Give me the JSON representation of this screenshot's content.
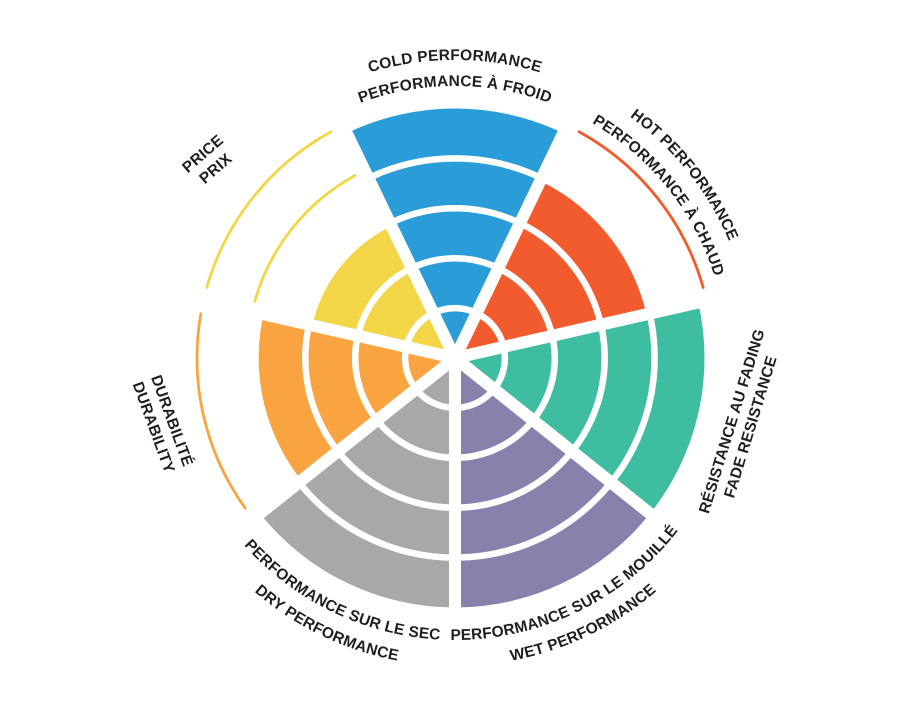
{
  "page": {
    "background": "#ffffff",
    "description": "Tire performance rating wheel"
  },
  "chart_data": {
    "type": "radar",
    "subtype": "polar-sector-wheel",
    "title": "",
    "value_scale": {
      "min": 0,
      "max": 5,
      "rings": 5
    },
    "grid": true,
    "legend_position": "none",
    "text_color": "#221e1f",
    "categories": [
      {
        "name": "cold-performance",
        "label_en": "COLD PERFORMANCE",
        "label_fr": "PERFORMANCE À FROID",
        "value": 5,
        "color": "#2A9CD8"
      },
      {
        "name": "hot-performance",
        "label_en": "HOT PERFORMANCE",
        "label_fr": "PERFORMANCE À CHAUD",
        "value": 4,
        "color": "#F15B2D"
      },
      {
        "name": "fade-resistance",
        "label_en": "FADE RESISTANCE",
        "label_fr": "RÉSISTANCE AU FADING",
        "value": 5,
        "color": "#3EBDA0"
      },
      {
        "name": "wet-performance",
        "label_en": "WET PERFORMANCE",
        "label_fr": "PERFORMANCE SUR LE MOUILLÉ",
        "value": 5,
        "color": "#8A80AC"
      },
      {
        "name": "dry-performance",
        "label_en": "DRY PERFORMANCE",
        "label_fr": "PERFORMANCE SUR LE SEC",
        "value": 5,
        "color": "#A8A8AB"
      },
      {
        "name": "durability",
        "label_en": "DURABILITY",
        "label_fr": "DURABILITÉ",
        "value": 4,
        "color": "#F9A441"
      },
      {
        "name": "price",
        "label_en": "PRICE",
        "label_fr": "PRIX",
        "value": 3,
        "color": "#F3D647"
      }
    ]
  }
}
